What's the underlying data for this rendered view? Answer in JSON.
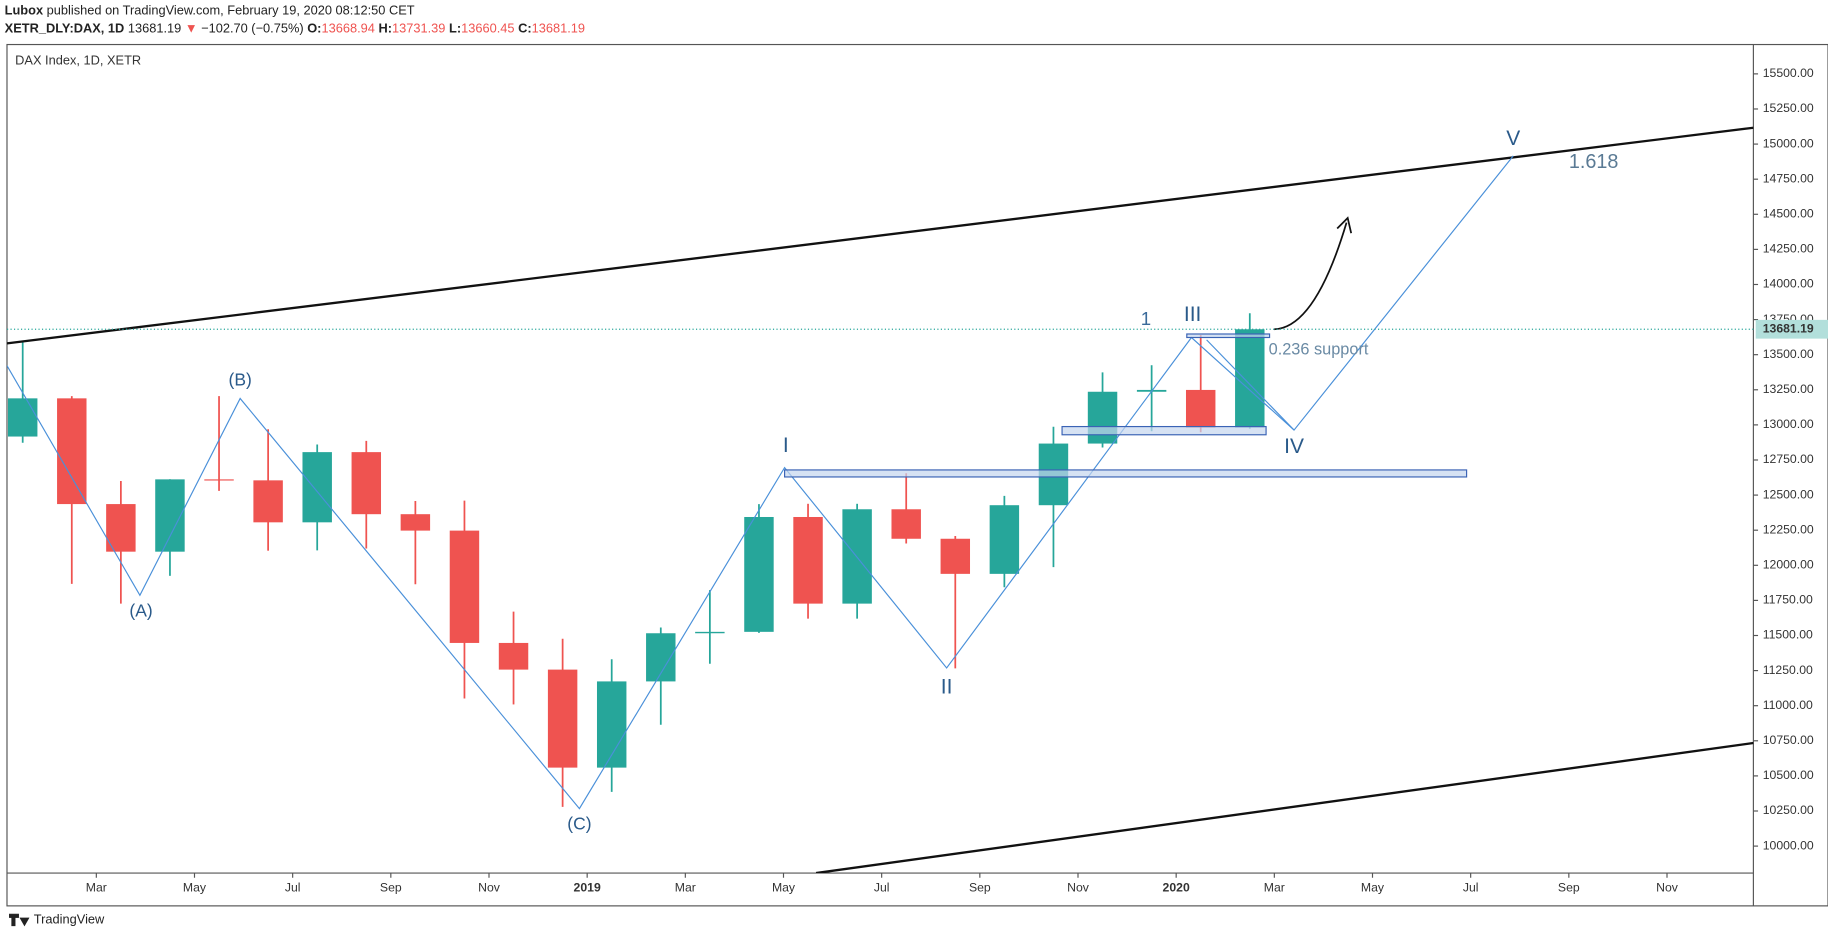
{
  "header": {
    "author": "Lubox",
    "published": "published on TradingView.com, February 19, 2020 08:12:50 CET",
    "symbol": "XETR_DLY:DAX, 1D",
    "last": "13681.19",
    "arrow": "▼",
    "change": "−102.70 (−0.75%)",
    "open_label": "O:",
    "open": "13668.94",
    "high_label": "H:",
    "high": "13731.39",
    "low_label": "L:",
    "low": "13660.45",
    "close_label": "C:",
    "close": "13681.19"
  },
  "annotations": {
    "A": "(A)",
    "B": "(B)",
    "C": "(C)",
    "I": "I",
    "II": "II",
    "III": "III",
    "IV": "IV",
    "V": "V",
    "one": "1",
    "fib": "1.618",
    "support": "0.236 support"
  },
  "footer": "TradingView",
  "chart_data": {
    "type": "candlestick",
    "title": "DAX Index, 1D, XETR",
    "x": [
      0,
      1,
      2,
      3,
      4,
      5,
      6,
      7,
      8,
      9,
      10,
      11,
      12,
      13,
      14,
      15,
      16,
      17,
      18,
      19,
      20,
      21,
      22,
      23,
      24,
      25
    ],
    "open": [
      12917,
      13189,
      12436,
      12097,
      12612,
      12605,
      12306,
      12806,
      12364,
      12247,
      11447,
      11257,
      10559,
      11173,
      11516,
      11526,
      12344,
      11727,
      12399,
      12189,
      11939,
      12428,
      12867,
      13236,
      13249,
      12981
    ],
    "high": [
      13597,
      13205,
      12600,
      12613,
      13205,
      12969,
      12860,
      12886,
      12458,
      12461,
      11670,
      11477,
      11331,
      11557,
      11823,
      12436,
      12438,
      12438,
      12656,
      12209,
      12494,
      12987,
      13374,
      13425,
      13640,
      13795
    ],
    "low": [
      12873,
      11868,
      11727,
      11925,
      12530,
      12104,
      12106,
      12120,
      11865,
      11051,
      11009,
      10279,
      10386,
      10864,
      11299,
      11519,
      11620,
      11620,
      12155,
      11266,
      11844,
      11987,
      12839,
      12955,
      12948,
      12973
    ],
    "close": [
      13189,
      12436,
      12097,
      12612,
      12605,
      12306,
      12806,
      12364,
      12247,
      11447,
      11257,
      10559,
      11173,
      11516,
      11526,
      12344,
      11727,
      12399,
      12189,
      11939,
      12428,
      12867,
      13236,
      13249,
      12981,
      13681
    ],
    "up_color": "#26a69a",
    "down_color": "#ef5350",
    "last_price": 13681.19,
    "last_price_label": "13681.19",
    "last_color": "#b2dfdb",
    "xlim": [
      0.18,
      35.76
    ],
    "xticks": [
      {
        "value": 2,
        "label": "Mar"
      },
      {
        "value": 4,
        "label": "May"
      },
      {
        "value": 6,
        "label": "Jul"
      },
      {
        "value": 8,
        "label": "Sep"
      },
      {
        "value": 10,
        "label": "Nov"
      },
      {
        "value": 12,
        "label": "2019"
      },
      {
        "value": 14,
        "label": "Mar"
      },
      {
        "value": 16,
        "label": "May"
      },
      {
        "value": 18,
        "label": "Jul"
      },
      {
        "value": 20,
        "label": "Sep"
      },
      {
        "value": 22,
        "label": "Nov"
      },
      {
        "value": 24,
        "label": "2020"
      },
      {
        "value": 26,
        "label": "Mar"
      },
      {
        "value": 28,
        "label": "May"
      },
      {
        "value": 30,
        "label": "Jul"
      },
      {
        "value": 32,
        "label": "Sep"
      },
      {
        "value": 34,
        "label": "Nov"
      }
    ],
    "ylim": [
      9808,
      15709
    ],
    "yticks": [
      {
        "value": 10000,
        "label": "10000.00"
      },
      {
        "value": 10250,
        "label": "10250.00"
      },
      {
        "value": 10500,
        "label": "10500.00"
      },
      {
        "value": 10750,
        "label": "10750.00"
      },
      {
        "value": 11000,
        "label": "11000.00"
      },
      {
        "value": 11250,
        "label": "11250.00"
      },
      {
        "value": 11500,
        "label": "11500.00"
      },
      {
        "value": 11750,
        "label": "11750.00"
      },
      {
        "value": 12000,
        "label": "12000.00"
      },
      {
        "value": 12250,
        "label": "12250.00"
      },
      {
        "value": 12500,
        "label": "12500.00"
      },
      {
        "value": 12750,
        "label": "12750.00"
      },
      {
        "value": 13000,
        "label": "13000.00"
      },
      {
        "value": 13250,
        "label": "13250.00"
      },
      {
        "value": 13500,
        "label": "13500.00"
      },
      {
        "value": 13750,
        "label": "13750.00"
      },
      {
        "value": 14000,
        "label": "14000.00"
      },
      {
        "value": 14250,
        "label": "14250.00"
      },
      {
        "value": 14500,
        "label": "14500.00"
      },
      {
        "value": 14750,
        "label": "14750.00"
      },
      {
        "value": 15000,
        "label": "15000.00"
      },
      {
        "value": 15250,
        "label": "15250.00"
      },
      {
        "value": 15500,
        "label": "15500.00"
      }
    ]
  }
}
